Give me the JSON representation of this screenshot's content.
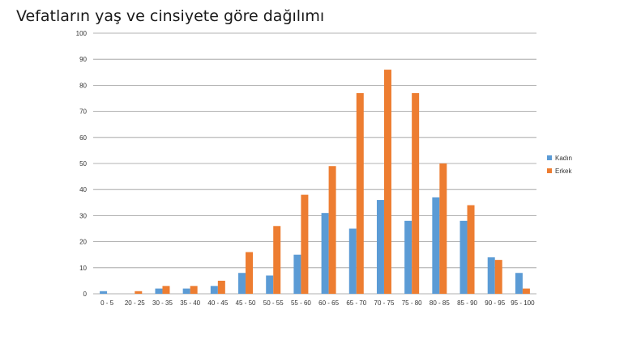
{
  "chart_data": {
    "type": "bar",
    "title": "Vefatların yaş ve cinsiyete göre dağılımı",
    "xlabel": "",
    "ylabel": "",
    "ylim": [
      0,
      100
    ],
    "yticks": [
      0,
      10,
      20,
      30,
      40,
      50,
      60,
      70,
      80,
      90,
      100
    ],
    "grid": true,
    "legend_position": "right",
    "categories": [
      "0 - 5",
      "20 - 25",
      "30 - 35",
      "35 - 40",
      "40 - 45",
      "45 - 50",
      "50 - 55",
      "55 - 60",
      "60 - 65",
      "65 - 70",
      "70 - 75",
      "75 - 80",
      "80 - 85",
      "85 - 90",
      "90 - 95",
      "95 - 100"
    ],
    "series": [
      {
        "name": "Kadın",
        "color": "#5B9BD5",
        "values": [
          1,
          0,
          2,
          2,
          3,
          8,
          7,
          15,
          31,
          25,
          36,
          28,
          37,
          28,
          14,
          8
        ]
      },
      {
        "name": "Erkek",
        "color": "#ED7D31",
        "values": [
          0,
          1,
          3,
          3,
          5,
          16,
          26,
          38,
          49,
          77,
          86,
          77,
          50,
          34,
          13,
          2
        ]
      }
    ]
  }
}
